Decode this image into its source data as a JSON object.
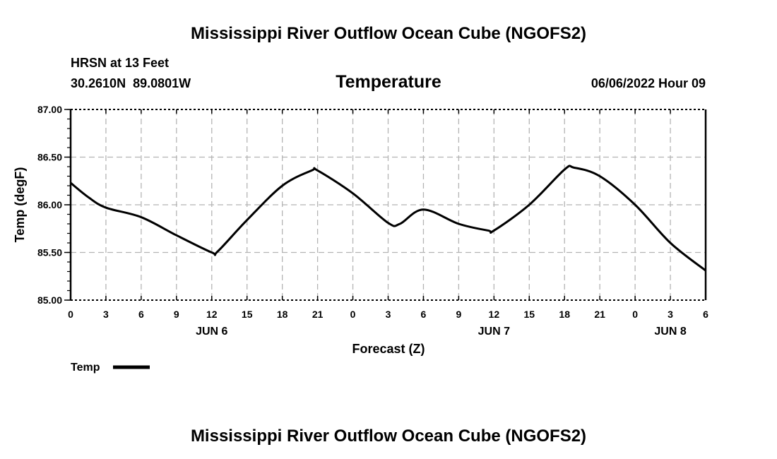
{
  "header": {
    "title": "Mississippi River Outflow Ocean Cube (NGOFS2)",
    "station": "HRSN at 13 Feet",
    "coords": "30.2610N  89.0801W",
    "variable": "Temperature",
    "datetime": "06/06/2022 Hour 09"
  },
  "footer": {
    "title": "Mississippi River Outflow Ocean Cube (NGOFS2)"
  },
  "chart_data": {
    "type": "line",
    "title": "Temperature",
    "xlabel": "Forecast (Z)",
    "ylabel": "Temp (degF)",
    "ylim": [
      85.0,
      87.0
    ],
    "xlim_hours": [
      0,
      54
    ],
    "y_ticks": [
      "85.00",
      "85.50",
      "86.00",
      "86.50",
      "87.00"
    ],
    "y_tick_values": [
      85.0,
      85.5,
      86.0,
      86.5,
      87.0
    ],
    "x_tick_labels": [
      "0",
      "3",
      "6",
      "9",
      "12",
      "15",
      "18",
      "21",
      "0",
      "3",
      "6",
      "9",
      "12",
      "15",
      "18",
      "21",
      "0",
      "3",
      "6"
    ],
    "day_labels": [
      {
        "label": "JUN 6",
        "hour": 12
      },
      {
        "label": "JUN 7",
        "hour": 36
      },
      {
        "label": "JUN 8",
        "hour": 51
      }
    ],
    "grid": true,
    "legend": {
      "label": "Temp",
      "placement": "bottom-left"
    },
    "series": [
      {
        "name": "Temp",
        "color": "#000000",
        "x_hours": [
          0,
          1.5,
          3,
          6,
          9,
          12,
          12.5,
          15,
          18,
          20.5,
          21,
          24,
          27,
          28,
          30,
          33,
          35.5,
          36,
          39,
          42,
          42.8,
          45,
          48,
          51,
          54
        ],
        "values": [
          86.23,
          86.08,
          85.97,
          85.87,
          85.68,
          85.5,
          85.51,
          85.84,
          86.2,
          86.36,
          86.36,
          86.12,
          85.81,
          85.8,
          85.95,
          85.8,
          85.73,
          85.73,
          86.0,
          86.37,
          86.39,
          86.3,
          86.0,
          85.6,
          85.31
        ]
      }
    ]
  }
}
